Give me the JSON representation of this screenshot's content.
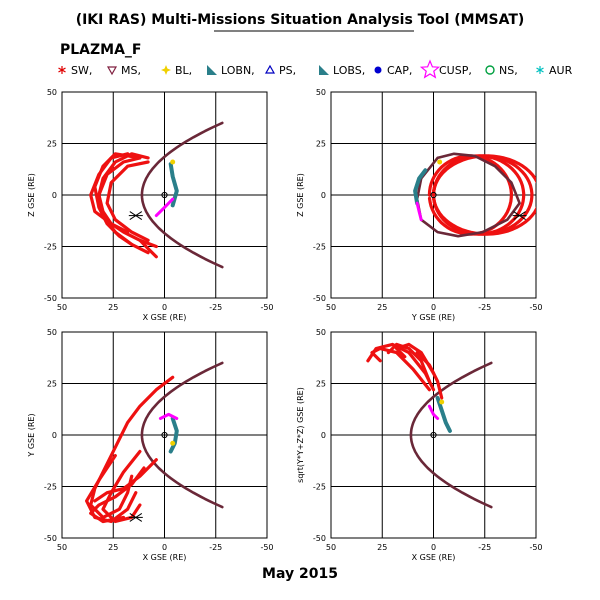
{
  "page": {
    "title": "(IKI RAS) Multi-Missions Situation Analysis Tool (MMSAT)",
    "subtitle": "PLAZMA_F",
    "date_label": "May 2015"
  },
  "legend": [
    {
      "label": "SW,",
      "marker": "star-asterisk",
      "color": "#e00000"
    },
    {
      "label": "MS,",
      "marker": "triangle-down",
      "color": "#802040"
    },
    {
      "label": "BL,",
      "marker": "diamond-star",
      "color": "#f0d000"
    },
    {
      "label": "LOBN,",
      "marker": "triangle-fill",
      "color": "#2a7f8a"
    },
    {
      "label": "PS,",
      "marker": "triangle-open",
      "color": "#0000c0"
    },
    {
      "label": "LOBS,",
      "marker": "triangle-fill",
      "color": "#2a7f8a"
    },
    {
      "label": "CAP,",
      "marker": "dot",
      "color": "#0000d0"
    },
    {
      "label": "CUSP,",
      "marker": "star-open",
      "color": "#ff00ff"
    },
    {
      "label": "NS,",
      "marker": "circle-open",
      "color": "#00a040"
    },
    {
      "label": "AUR",
      "marker": "asterisk",
      "color": "#00c0c0"
    }
  ],
  "colors": {
    "sw": "#ee1111",
    "ms": "#6a2838",
    "tail": "#2a7f8a",
    "cusp": "#ff00ff",
    "bl": "#f0d000",
    "ps": "#0000c0",
    "grid": "#000000"
  },
  "chart_data": [
    {
      "type": "scatter",
      "panel": "top-left",
      "xlabel": "X GSE (RE)",
      "ylabel": "Z GSE (RE)",
      "xlim": [
        50,
        -50
      ],
      "ylim": [
        -50,
        50
      ],
      "xticks": [
        50,
        25,
        0,
        -25,
        -50
      ],
      "yticks": [
        50,
        25,
        0,
        -25,
        -50
      ],
      "x_ticklabels": [
        "50",
        "25",
        "0",
        "-25",
        "-50"
      ],
      "y_ticklabels": [
        "50",
        "25",
        "0",
        "-25",
        "-50"
      ],
      "grid": true
    },
    {
      "type": "scatter",
      "panel": "top-right",
      "xlabel": "Y GSE (RE)",
      "ylabel": "Z GSE (RE)",
      "xlim": [
        50,
        -50
      ],
      "ylim": [
        -50,
        50
      ],
      "xticks": [
        50,
        25,
        0,
        -25,
        -50
      ],
      "yticks": [
        50,
        25,
        0,
        -25,
        -50
      ],
      "x_ticklabels": [
        "50",
        "25",
        "0",
        "-25",
        "-50"
      ],
      "y_ticklabels": [
        "50",
        "25",
        "0",
        "-25",
        "-50"
      ],
      "grid": true
    },
    {
      "type": "scatter",
      "panel": "bottom-left",
      "xlabel": "X GSE (RE)",
      "ylabel": "Y GSE (RE)",
      "xlim": [
        50,
        -50
      ],
      "ylim": [
        -50,
        50
      ],
      "xticks": [
        50,
        25,
        0,
        -25,
        -50
      ],
      "yticks": [
        -50,
        -25,
        0,
        25,
        50
      ],
      "x_ticklabels": [
        "50",
        "25",
        "0",
        "-25",
        "-50"
      ],
      "y_ticklabels": [
        "-50",
        "-25",
        "0",
        "25",
        "50"
      ],
      "grid": true
    },
    {
      "type": "scatter",
      "panel": "bottom-right",
      "xlabel": "X GSE (RE)",
      "ylabel": "sqrt(Y*Y+Z*Z) GSE (RE)",
      "xlim": [
        50,
        -50
      ],
      "ylim": [
        -50,
        50
      ],
      "xticks": [
        50,
        25,
        0,
        -25,
        -50
      ],
      "yticks": [
        -50,
        -25,
        0,
        25,
        50
      ],
      "x_ticklabels": [
        "50",
        "25",
        "0",
        "-25",
        "-50"
      ],
      "y_ticklabels": [
        "-50",
        "-25",
        "0",
        "25",
        "50"
      ],
      "grid": true
    }
  ]
}
